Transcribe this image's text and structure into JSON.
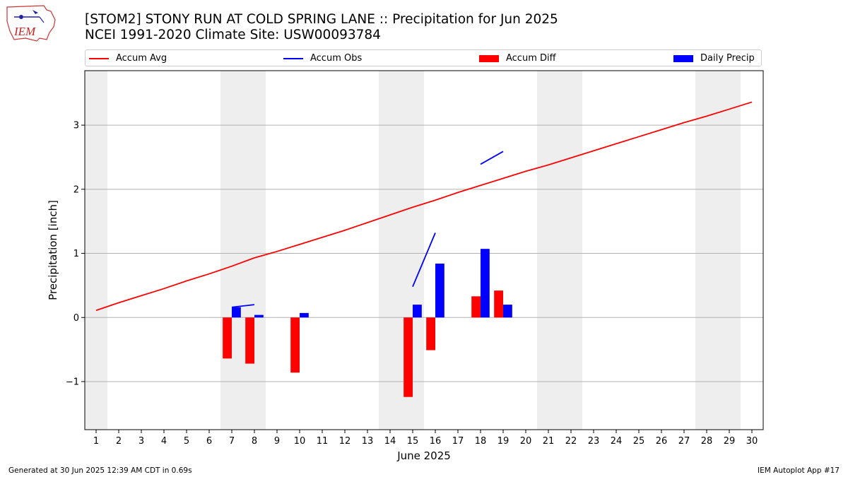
{
  "header": {
    "title_line1": "[STOM2] STONY RUN AT COLD SPRING LANE :: Precipitation for Jun 2025",
    "title_line2": "NCEI 1991-2020 Climate Site: USW00093784",
    "logo_text": "IEM"
  },
  "footer": {
    "left": "Generated at 30 Jun 2025 12:39 AM CDT in 0.69s",
    "right": "IEM Autoplot App #17"
  },
  "colors": {
    "avg": "#ff0000",
    "obs": "#0000ff",
    "diff": "#ff0000",
    "daily": "#0000ff",
    "weekend": "#eeeeee",
    "grid": "#b0b0b0"
  },
  "chart_data": {
    "type": "bar",
    "xlabel": "June 2025",
    "ylabel": "Precipitation [inch]",
    "xlim": [
      0.5,
      30.5
    ],
    "ylim": [
      -1.75,
      3.85
    ],
    "yticks": [
      -1,
      0,
      1,
      2,
      3
    ],
    "ytick_labels": [
      "−1",
      "0",
      "1",
      "2",
      "3"
    ],
    "grid": "horizontal",
    "legend_placement": "top",
    "days": [
      1,
      2,
      3,
      4,
      5,
      6,
      7,
      8,
      9,
      10,
      11,
      12,
      13,
      14,
      15,
      16,
      17,
      18,
      19,
      20,
      21,
      22,
      23,
      24,
      25,
      26,
      27,
      28,
      29,
      30
    ],
    "weekend_days": [
      1,
      7,
      8,
      14,
      15,
      21,
      22,
      28,
      29
    ],
    "series": [
      {
        "name": "Accum Avg",
        "kind": "line",
        "values": [
          0.11,
          0.23,
          0.34,
          0.45,
          0.57,
          0.68,
          0.8,
          0.93,
          1.03,
          1.14,
          1.25,
          1.36,
          1.48,
          1.6,
          1.72,
          1.83,
          1.95,
          2.06,
          2.17,
          2.28,
          2.38,
          2.49,
          2.6,
          2.71,
          2.82,
          2.93,
          3.04,
          3.14,
          3.25,
          3.36
        ]
      },
      {
        "name": "Accum Obs",
        "kind": "line",
        "segments": [
          {
            "x": [
              7,
              8
            ],
            "y": [
              0.16,
              0.2
            ]
          },
          {
            "x": [
              15,
              16
            ],
            "y": [
              0.48,
              1.32
            ]
          },
          {
            "x": [
              18,
              19
            ],
            "y": [
              2.39,
              2.59
            ]
          }
        ]
      },
      {
        "name": "Accum Diff",
        "kind": "bar",
        "x": [
          7,
          8,
          10,
          15,
          16,
          18,
          19
        ],
        "values": [
          -0.64,
          -0.72,
          -0.86,
          -1.24,
          -0.51,
          0.33,
          0.42
        ]
      },
      {
        "name": "Daily Precip",
        "kind": "bar",
        "x": [
          7,
          8,
          10,
          15,
          16,
          18,
          19
        ],
        "values": [
          0.16,
          0.04,
          0.07,
          0.2,
          0.84,
          1.07,
          0.2
        ]
      }
    ]
  }
}
